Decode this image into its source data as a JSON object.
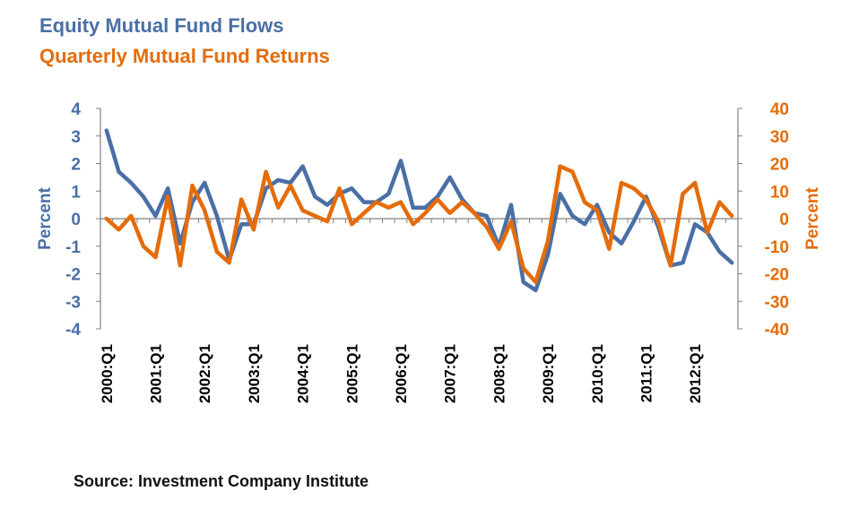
{
  "colors": {
    "flows": "#4a6fa5",
    "returns": "#e46c0a",
    "axis": "#808080"
  },
  "texts": {
    "title_flows": "Equity Mutual Fund Flows",
    "title_returns": "Quarterly Mutual Fund Returns",
    "source": "Source: Investment Company Institute"
  },
  "chart_data": {
    "type": "line",
    "x": [
      "2000:Q1",
      "2000:Q2",
      "2000:Q3",
      "2000:Q4",
      "2001:Q1",
      "2001:Q2",
      "2001:Q3",
      "2001:Q4",
      "2002:Q1",
      "2002:Q2",
      "2002:Q3",
      "2002:Q4",
      "2003:Q1",
      "2003:Q2",
      "2003:Q3",
      "2003:Q4",
      "2004:Q1",
      "2004:Q2",
      "2004:Q3",
      "2004:Q4",
      "2005:Q1",
      "2005:Q2",
      "2005:Q3",
      "2005:Q4",
      "2006:Q1",
      "2006:Q2",
      "2006:Q3",
      "2006:Q4",
      "2007:Q1",
      "2007:Q2",
      "2007:Q3",
      "2007:Q4",
      "2008:Q1",
      "2008:Q2",
      "2008:Q3",
      "2008:Q4",
      "2009:Q1",
      "2009:Q2",
      "2009:Q3",
      "2009:Q4",
      "2010:Q1",
      "2010:Q2",
      "2010:Q3",
      "2010:Q4",
      "2011:Q1",
      "2011:Q2",
      "2011:Q3",
      "2011:Q4",
      "2012:Q1",
      "2012:Q2",
      "2012:Q3",
      "2012:Q4"
    ],
    "xtick_labels": [
      "2000:Q1",
      "2001:Q1",
      "2002:Q1",
      "2003:Q1",
      "2004:Q1",
      "2005:Q1",
      "2006:Q1",
      "2007:Q1",
      "2008:Q1",
      "2009:Q1",
      "2010:Q1",
      "2011:Q1",
      "2012:Q1"
    ],
    "series": [
      {
        "name": "Equity Mutual Fund Flows",
        "axis": "left",
        "values": [
          3.2,
          1.7,
          1.3,
          0.8,
          0.1,
          1.1,
          -0.9,
          0.6,
          1.3,
          0.1,
          -1.5,
          -0.2,
          -0.2,
          1.1,
          1.4,
          1.3,
          1.9,
          0.8,
          0.5,
          0.9,
          1.1,
          0.6,
          0.6,
          0.9,
          2.1,
          0.4,
          0.4,
          0.8,
          1.5,
          0.7,
          0.2,
          0.1,
          -1.0,
          0.5,
          -2.3,
          -2.6,
          -1.3,
          0.9,
          0.1,
          -0.2,
          0.5,
          -0.5,
          -0.9,
          -0.1,
          0.8,
          -0.3,
          -1.7,
          -1.6,
          -0.2,
          -0.5,
          -1.2,
          -1.6
        ]
      },
      {
        "name": "Quarterly Mutual Fund Returns",
        "axis": "right",
        "values": [
          0,
          -4,
          1,
          -10,
          -14,
          8,
          -17,
          12,
          3,
          -12,
          -16,
          7,
          -4,
          17,
          4,
          12,
          3,
          1,
          -1,
          11,
          -2,
          2,
          6,
          4,
          6,
          -2,
          2,
          7,
          2,
          6,
          2,
          -3,
          -11,
          -1,
          -18,
          -23,
          -8,
          19,
          17,
          6,
          3,
          -11,
          13,
          11,
          7,
          -1,
          -17,
          9,
          13,
          -5,
          6,
          1
        ]
      }
    ],
    "y_left": {
      "label": "Percent",
      "ylim": [
        -4,
        4
      ],
      "ticks": [
        4,
        3,
        2,
        1,
        0,
        -1,
        -2,
        -3,
        -4
      ]
    },
    "y_right": {
      "label": "Percent",
      "ylim": [
        -40,
        40
      ],
      "ticks": [
        40,
        30,
        20,
        10,
        0,
        -10,
        -20,
        -30,
        -40
      ]
    },
    "grid": false
  }
}
